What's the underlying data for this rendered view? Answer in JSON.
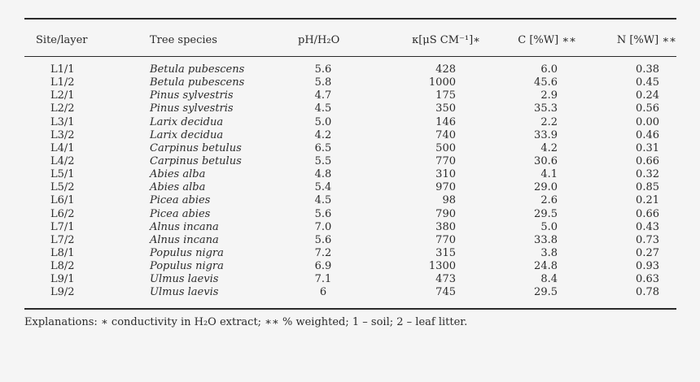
{
  "table": {
    "headers": {
      "site": "Site/layer",
      "species": "Tree species",
      "ph": "pH/H₂O",
      "kappa": "κ[μS CM⁻¹]∗",
      "c": "C [%W] ∗∗",
      "n": "N [%W] ∗∗"
    },
    "rows": [
      {
        "site": "L1/1",
        "species": "Betula pubescens",
        "ph": "5.6",
        "kappa": "428",
        "c": "6.0",
        "n": "0.38"
      },
      {
        "site": "L1/2",
        "species": "Betula pubescens",
        "ph": "5.8",
        "kappa": "1000",
        "c": "45.6",
        "n": "0.45"
      },
      {
        "site": "L2/1",
        "species": "Pinus sylvestris",
        "ph": "4.7",
        "kappa": "175",
        "c": "2.9",
        "n": "0.24"
      },
      {
        "site": "L2/2",
        "species": "Pinus sylvestris",
        "ph": "4.5",
        "kappa": "350",
        "c": "35.3",
        "n": "0.56"
      },
      {
        "site": "L3/1",
        "species": "Larix decidua",
        "ph": "5.0",
        "kappa": "146",
        "c": "2.2",
        "n": "0.00"
      },
      {
        "site": "L3/2",
        "species": "Larix decidua",
        "ph": "4.2",
        "kappa": "740",
        "c": "33.9",
        "n": "0.46"
      },
      {
        "site": "L4/1",
        "species": "Carpinus betulus",
        "ph": "6.5",
        "kappa": "500",
        "c": "4.2",
        "n": "0.31"
      },
      {
        "site": "L4/2",
        "species": "Carpinus betulus",
        "ph": "5.5",
        "kappa": "770",
        "c": "30.6",
        "n": "0.66"
      },
      {
        "site": "L5/1",
        "species": "Abies alba",
        "ph": "4.8",
        "kappa": "310",
        "c": "4.1",
        "n": "0.32"
      },
      {
        "site": "L5/2",
        "species": "Abies alba",
        "ph": "5.4",
        "kappa": "970",
        "c": "29.0",
        "n": "0.85"
      },
      {
        "site": "L6/1",
        "species": "Picea abies",
        "ph": "4.5",
        "kappa": "98",
        "c": "2.6",
        "n": "0.21"
      },
      {
        "site": "L6/2",
        "species": "Picea abies",
        "ph": "5.6",
        "kappa": "790",
        "c": "29.5",
        "n": "0.66"
      },
      {
        "site": "L7/1",
        "species": "Alnus incana",
        "ph": "7.0",
        "kappa": "380",
        "c": "5.0",
        "n": "0.43"
      },
      {
        "site": "L7/2",
        "species": "Alnus incana",
        "ph": "5.6",
        "kappa": "770",
        "c": "33.8",
        "n": "0.73"
      },
      {
        "site": "L8/1",
        "species": "Populus nigra",
        "ph": "7.2",
        "kappa": "315",
        "c": "3.8",
        "n": "0.27"
      },
      {
        "site": "L8/2",
        "species": "Populus nigra",
        "ph": "6.9",
        "kappa": "1300",
        "c": "24.8",
        "n": "0.93"
      },
      {
        "site": "L9/1",
        "species": "Ulmus laevis",
        "ph": "7.1",
        "kappa": "473",
        "c": "8.4",
        "n": "0.63"
      },
      {
        "site": "L9/2",
        "species": "Ulmus laevis",
        "ph": "6",
        "kappa": "745",
        "c": "29.5",
        "n": "0.78"
      }
    ]
  },
  "note": "Explanations: ∗ conductivity in H₂O extract; ∗∗ % weighted; 1 – soil; 2 – leaf litter."
}
